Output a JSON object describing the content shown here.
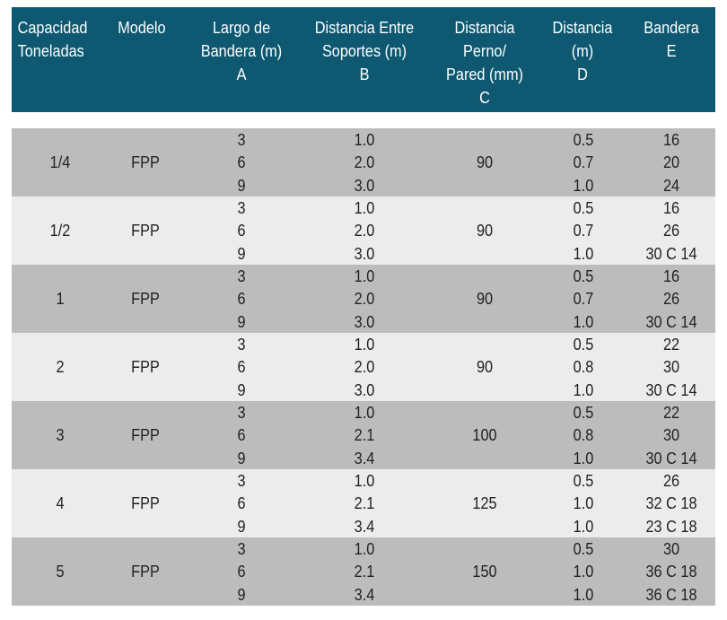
{
  "header": {
    "capacidad": [
      "Capacidad",
      "Toneladas"
    ],
    "modelo": [
      "Modelo"
    ],
    "largo": [
      "Largo de",
      "Bandera (m)",
      "A"
    ],
    "distancia_entre": [
      "Distancia Entre",
      "Soportes (m)",
      "B"
    ],
    "distancia_perno": [
      "Distancia",
      "Perno/",
      "Pared (mm)",
      "C"
    ],
    "distancia_d": [
      "Distancia",
      "(m)",
      "D"
    ],
    "bandera": [
      "Bandera",
      "E"
    ]
  },
  "colors": {
    "header_bg": "#0e5971",
    "row_dark": "#bcbcbc",
    "row_light": "#ececec"
  },
  "rows": [
    {
      "capacidad": "1/4",
      "modelo": "FPP",
      "a": [
        "3",
        "6",
        "9"
      ],
      "b": [
        "1.0",
        "2.0",
        "3.0"
      ],
      "c": "90",
      "d": [
        "0.5",
        "0.7",
        "1.0"
      ],
      "e": [
        "16",
        "20",
        "24"
      ]
    },
    {
      "capacidad": "1/2",
      "modelo": "FPP",
      "a": [
        "3",
        "6",
        "9"
      ],
      "b": [
        "1.0",
        "2.0",
        "3.0"
      ],
      "c": "90",
      "d": [
        "0.5",
        "0.7",
        "1.0"
      ],
      "e": [
        "16",
        "26",
        "30 C 14"
      ]
    },
    {
      "capacidad": "1",
      "modelo": "FPP",
      "a": [
        "3",
        "6",
        "9"
      ],
      "b": [
        "1.0",
        "2.0",
        "3.0"
      ],
      "c": "90",
      "d": [
        "0.5",
        "0.7",
        "1.0"
      ],
      "e": [
        "16",
        "26",
        "30 C 14"
      ]
    },
    {
      "capacidad": "2",
      "modelo": "FPP",
      "a": [
        "3",
        "6",
        "9"
      ],
      "b": [
        "1.0",
        "2.0",
        "3.0"
      ],
      "c": "90",
      "d": [
        "0.5",
        "0.8",
        "1.0"
      ],
      "e": [
        "22",
        "30",
        "30 C 14"
      ]
    },
    {
      "capacidad": "3",
      "modelo": "FPP",
      "a": [
        "3",
        "6",
        "9"
      ],
      "b": [
        "1.0",
        "2.1",
        "3.4"
      ],
      "c": "100",
      "d": [
        "0.5",
        "0.8",
        "1.0"
      ],
      "e": [
        "22",
        "30",
        "30 C 14"
      ]
    },
    {
      "capacidad": "4",
      "modelo": "FPP",
      "a": [
        "3",
        "6",
        "9"
      ],
      "b": [
        "1.0",
        "2.1",
        "3.4"
      ],
      "c": "125",
      "d": [
        "0.5",
        "1.0",
        "1.0"
      ],
      "e": [
        "26",
        "32 C 18",
        "23 C 18"
      ]
    },
    {
      "capacidad": "5",
      "modelo": "FPP",
      "a": [
        "3",
        "6",
        "9"
      ],
      "b": [
        "1.0",
        "2.1",
        "3.4"
      ],
      "c": "150",
      "d": [
        "0.5",
        "1.0",
        "1.0"
      ],
      "e": [
        "30",
        "36 C 18",
        "36 C 18"
      ]
    }
  ]
}
